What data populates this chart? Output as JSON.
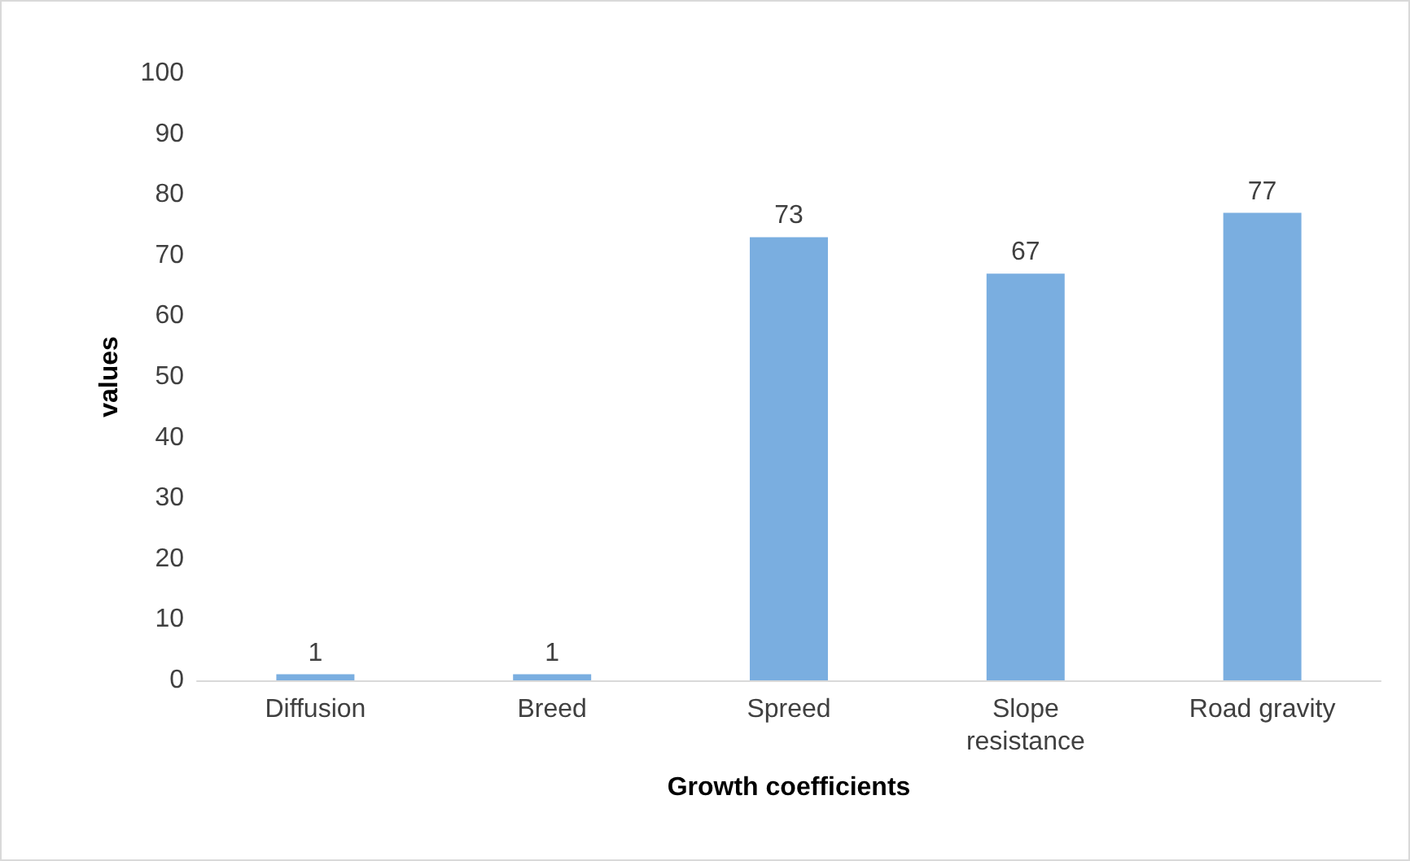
{
  "chart_data": {
    "type": "bar",
    "xlabel": "Growth coefficients",
    "ylabel": "values",
    "categories": [
      "Diffusion",
      "Breed",
      "Spreed",
      "Slope\nresistance",
      "Road gravity"
    ],
    "values": [
      1,
      1,
      73,
      67,
      77
    ],
    "color": "#7aaee0",
    "ylim": [
      0,
      100
    ],
    "yticks": [
      0,
      10,
      20,
      30,
      40,
      50,
      60,
      70,
      80,
      90,
      100
    ],
    "grid": false,
    "data_labels": true
  }
}
